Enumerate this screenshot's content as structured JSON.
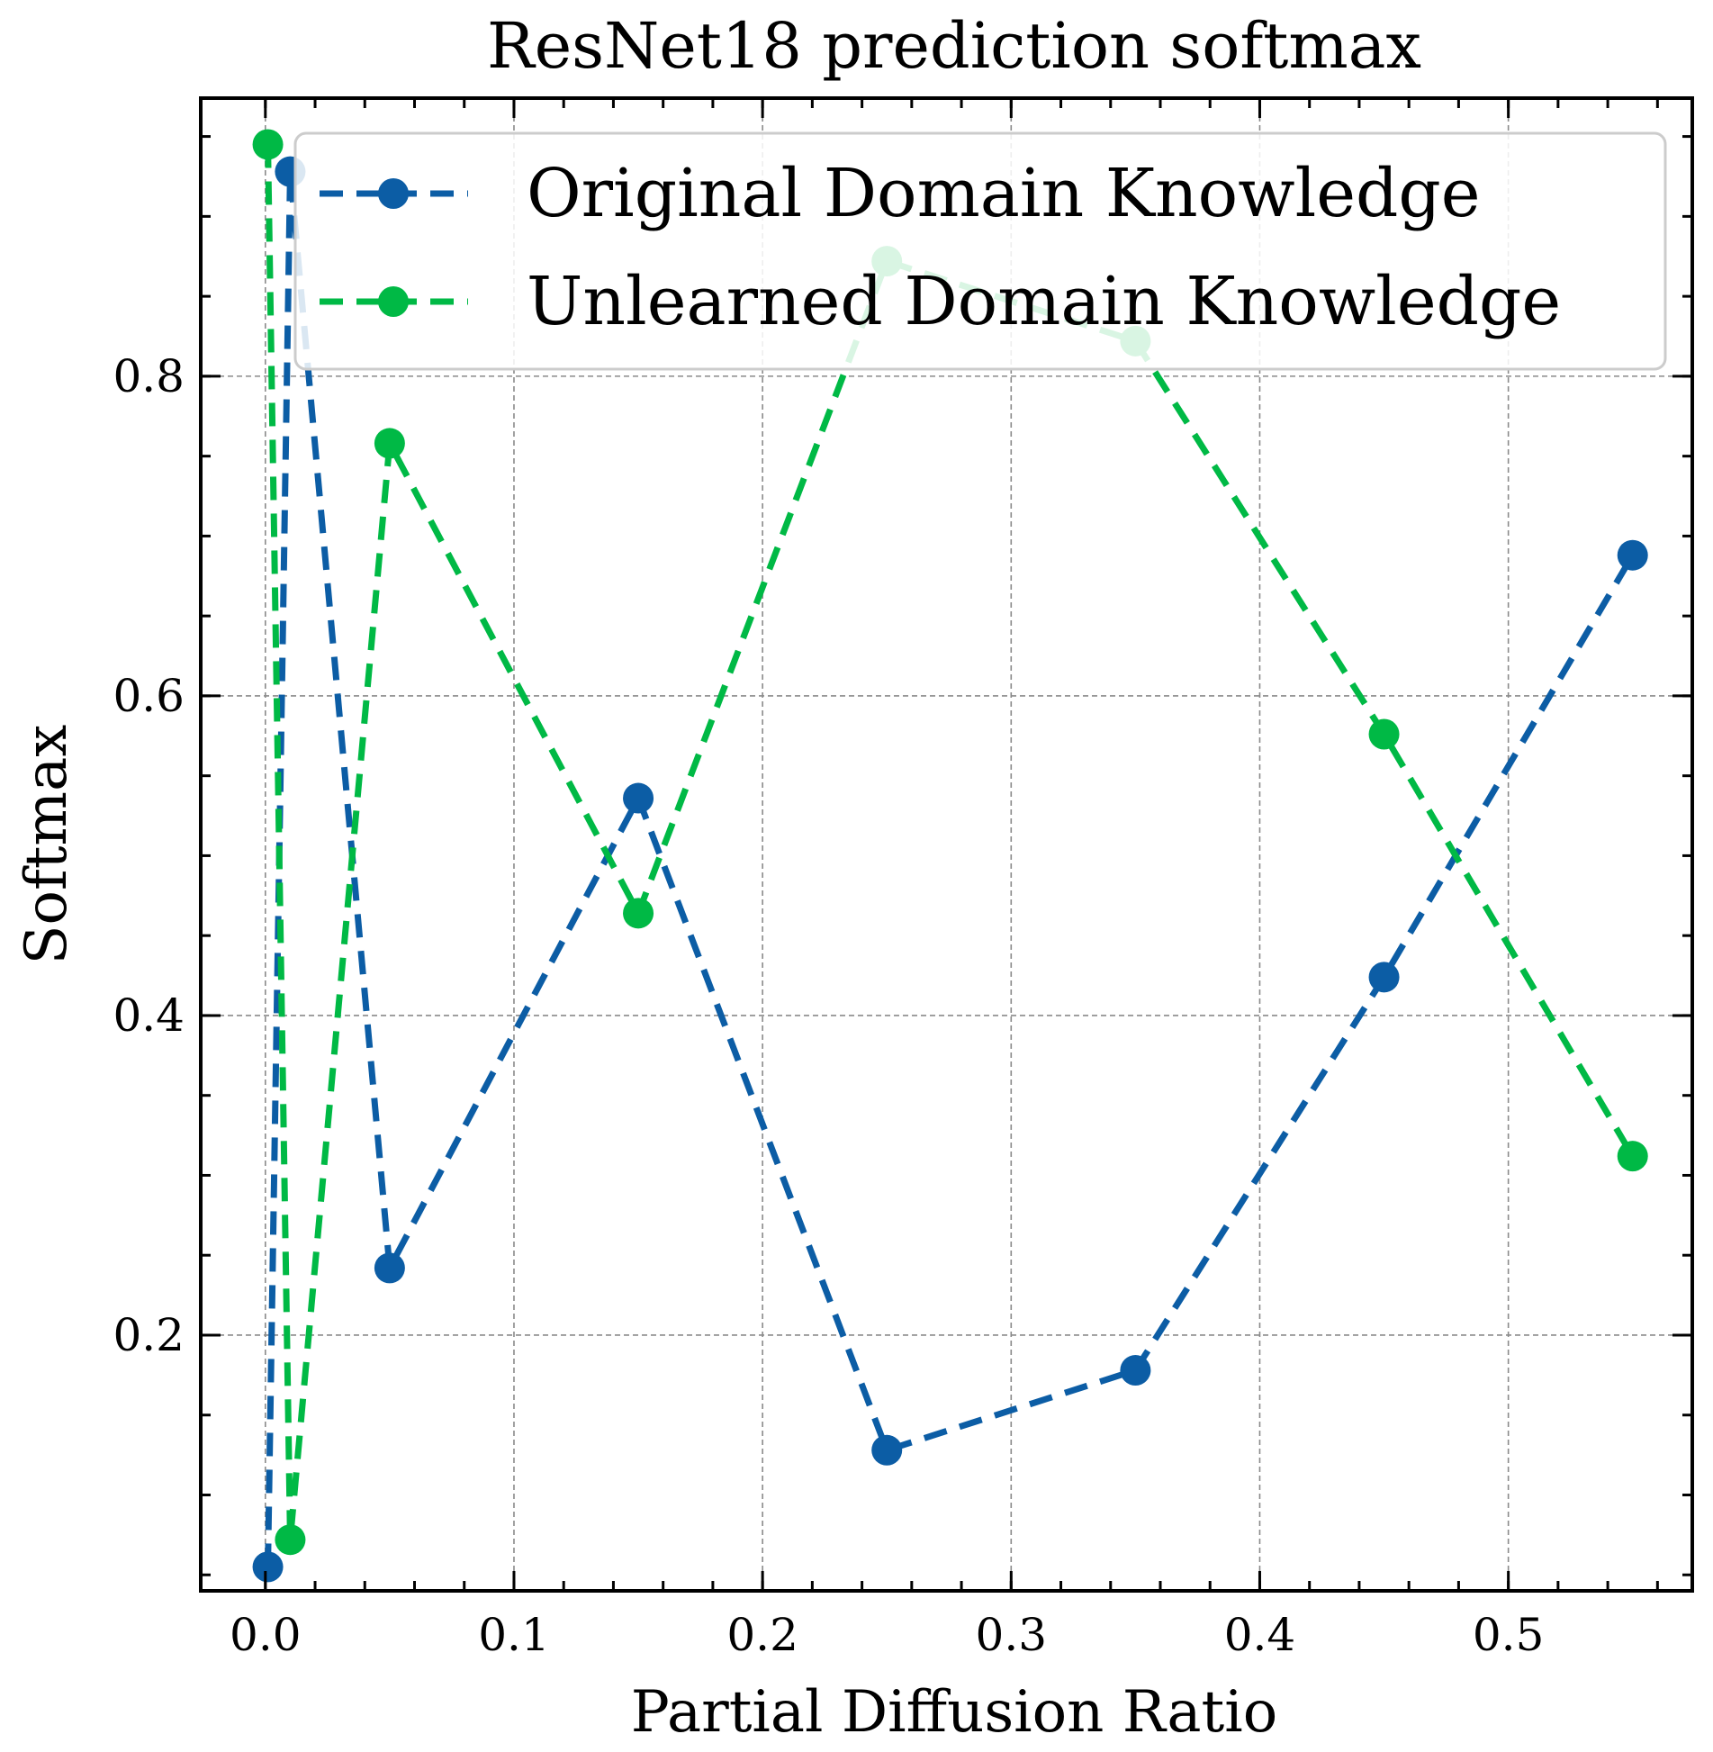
{
  "chart_data": {
    "type": "line",
    "title": "ResNet18 prediction softmax",
    "xlabel": "Partial Diffusion Ratio",
    "ylabel": "Softmax",
    "xlim": [
      -0.026,
      0.574
    ],
    "ylim": [
      0.04,
      0.974
    ],
    "xticks": [
      0.0,
      0.1,
      0.2,
      0.3,
      0.4,
      0.5
    ],
    "xtick_labels": [
      "0.0",
      "0.1",
      "0.2",
      "0.3",
      "0.4",
      "0.5"
    ],
    "yticks": [
      0.2,
      0.4,
      0.6,
      0.8
    ],
    "ytick_labels": [
      "0.2",
      "0.4",
      "0.6",
      "0.8"
    ],
    "x_minor_step": 0.02,
    "y_minor_step": 0.05,
    "grid": true,
    "legend_position": "top-right",
    "series": [
      {
        "name": "Original Domain Knowledge",
        "color": "#0c5da5",
        "x": [
          0.001,
          0.01,
          0.05,
          0.15,
          0.25,
          0.35,
          0.45,
          0.55
        ],
        "y": [
          0.055,
          0.928,
          0.242,
          0.536,
          0.128,
          0.178,
          0.424,
          0.688
        ]
      },
      {
        "name": "Unlearned Domain Knowledge",
        "color": "#00b945",
        "x": [
          0.001,
          0.01,
          0.05,
          0.15,
          0.25,
          0.35,
          0.45,
          0.55
        ],
        "y": [
          0.945,
          0.072,
          0.758,
          0.464,
          0.872,
          0.822,
          0.576,
          0.312
        ]
      }
    ]
  }
}
